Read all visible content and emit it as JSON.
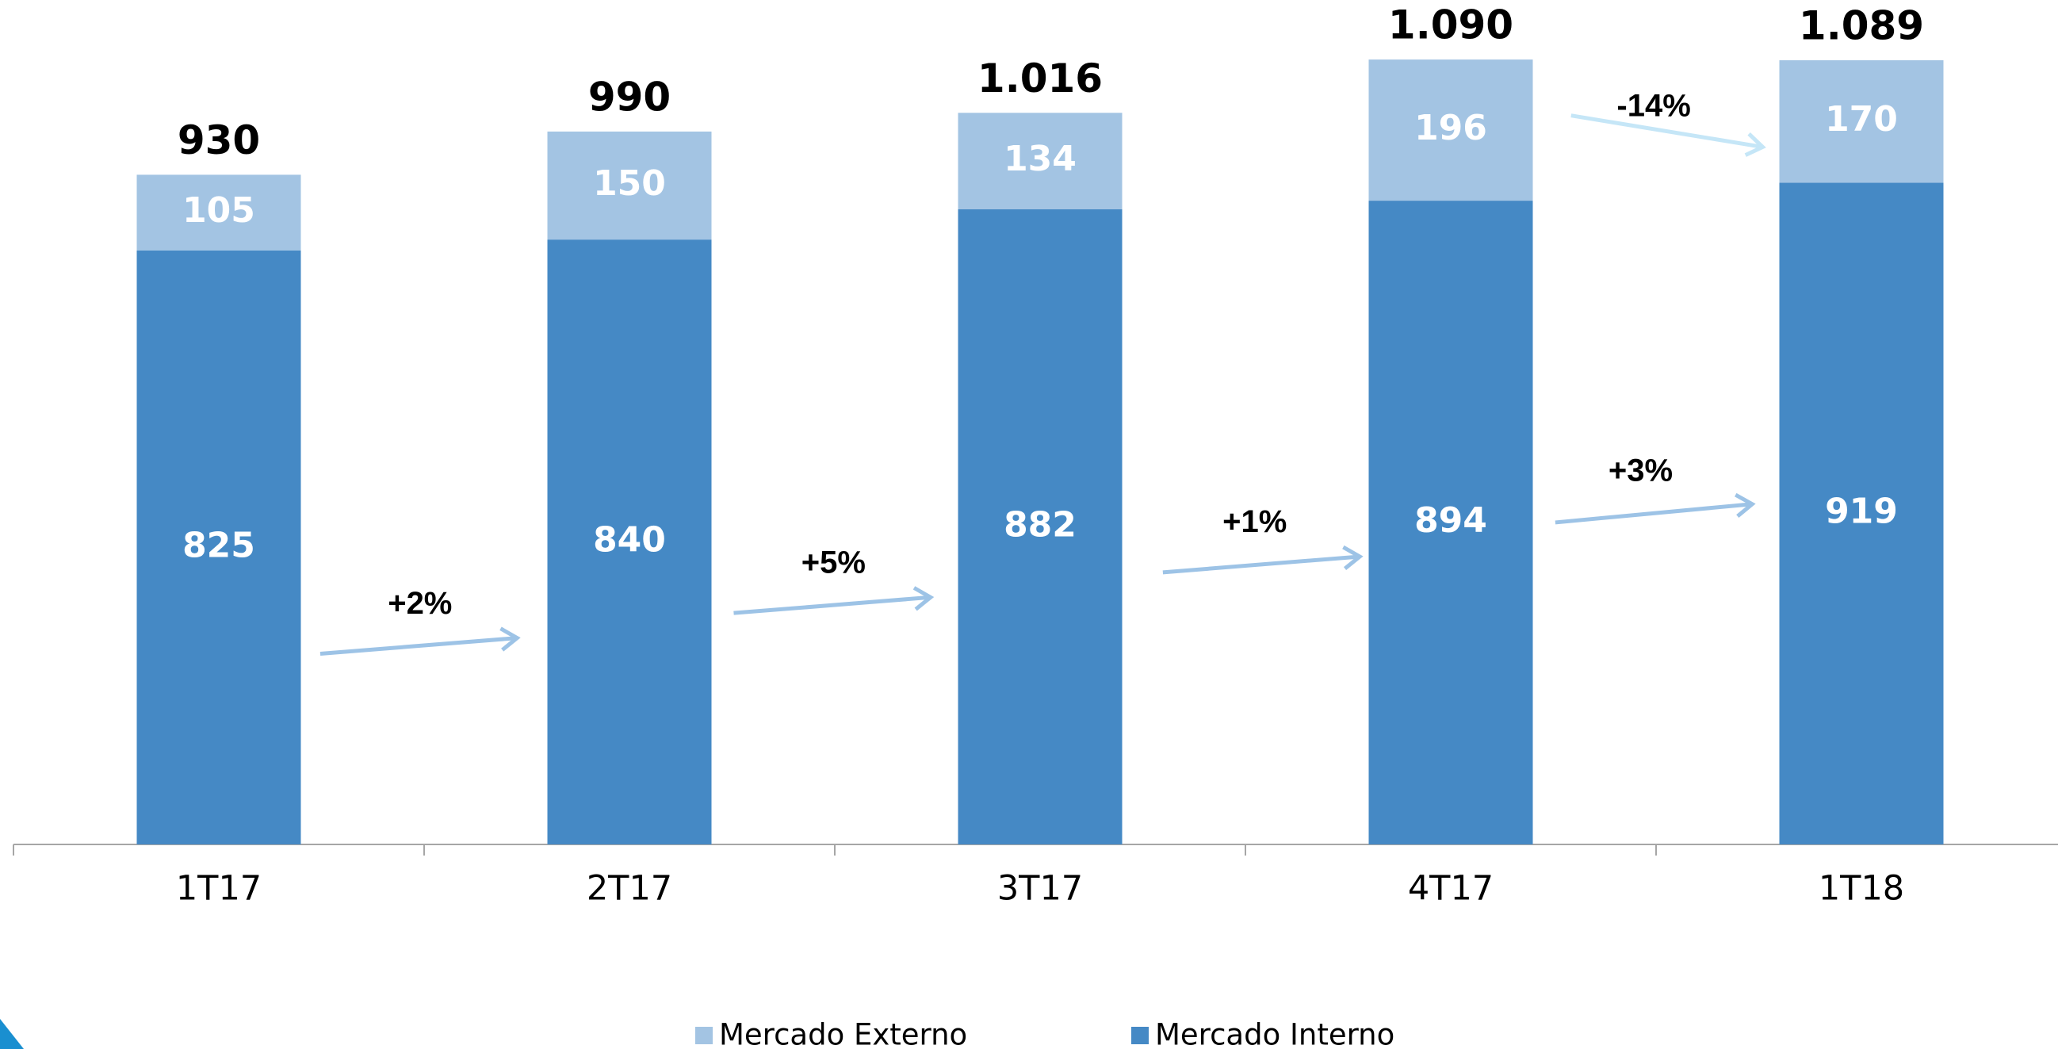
{
  "chart_data": {
    "type": "stacked-bar",
    "categories": [
      "1T17",
      "2T17",
      "3T17",
      "4T17",
      "1T18"
    ],
    "series": [
      {
        "name": "Mercado Interno",
        "color": "#4589c5",
        "values": [
          825,
          840,
          882,
          894,
          919
        ]
      },
      {
        "name": "Mercado Externo",
        "color": "#a3c4e3",
        "values": [
          105,
          150,
          134,
          196,
          170
        ]
      }
    ],
    "totals": {
      "values": [
        930,
        990,
        1016,
        1090,
        1089
      ],
      "value_labels": [
        "930",
        "990",
        "1.016",
        "1.090",
        "1.089"
      ]
    },
    "annotations": [
      "+2%",
      "+5%",
      "+1%",
      "+3%",
      "-14%"
    ],
    "ylim": [
      0,
      1100
    ]
  }
}
